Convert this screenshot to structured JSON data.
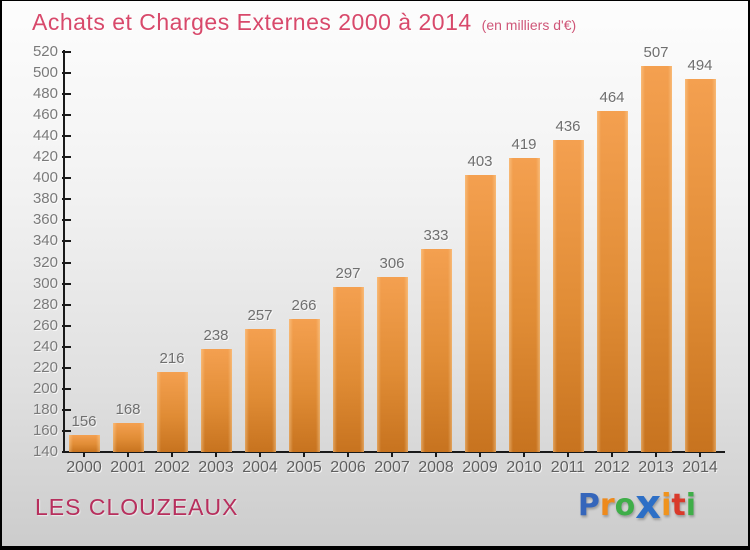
{
  "header": {
    "title": "Achats et Charges Externes 2000 à 2014",
    "subtitle": "(en milliers d'€)"
  },
  "chart_data": {
    "type": "bar",
    "title": "Achats et Charges Externes 2000 à 2014",
    "subtitle": "(en milliers d'€)",
    "categories": [
      "2000",
      "2001",
      "2002",
      "2003",
      "2004",
      "2005",
      "2006",
      "2007",
      "2008",
      "2009",
      "2010",
      "2011",
      "2012",
      "2013",
      "2014"
    ],
    "values": [
      156,
      168,
      216,
      238,
      257,
      266,
      297,
      306,
      333,
      403,
      419,
      436,
      464,
      507,
      494
    ],
    "xlabel": "",
    "ylabel": "",
    "ylim": [
      140,
      520
    ],
    "y_ticks": [
      140,
      160,
      180,
      200,
      220,
      240,
      260,
      280,
      300,
      320,
      340,
      360,
      380,
      400,
      420,
      440,
      460,
      480,
      500,
      520
    ],
    "grid": false,
    "legend": "none",
    "value_labels": "above bars"
  },
  "colors": {
    "title": "#d8496b",
    "subtitle": "#cf5678",
    "bar_top": "#f4a050",
    "bar_bottom": "#c7731f",
    "axis": "#1a1a1a",
    "tick_label": "#7a7a7a",
    "value_label": "#6f6f6f",
    "footer_location": "#b72f5d"
  },
  "footer": {
    "location": "LES CLOUZEAUX",
    "logo_text": "Proxiti",
    "logo_letters": [
      {
        "ch": "P",
        "color": "#3566bb",
        "big": false
      },
      {
        "ch": "r",
        "color": "#ee8a1c",
        "big": false
      },
      {
        "ch": "o",
        "color": "#3fae49",
        "big": false
      },
      {
        "ch": "x",
        "color": "#2d6fc6",
        "big": true
      },
      {
        "ch": "i",
        "color": "#f0931c",
        "big": false
      },
      {
        "ch": "t",
        "color": "#d93a2b",
        "big": false
      },
      {
        "ch": "i",
        "color": "#3fae49",
        "big": false
      }
    ]
  }
}
